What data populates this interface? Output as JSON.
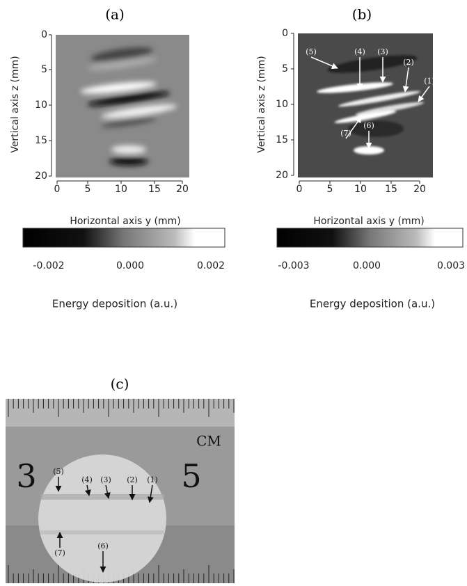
{
  "panels": [
    {
      "label": "(a)",
      "y_axis_label": "Vertical axis z (mm)",
      "x_axis_label": "Horizontal axis y (mm)",
      "yticks": [
        "0",
        "5",
        "10",
        "15",
        "20"
      ],
      "xticks": [
        "0",
        "5",
        "10",
        "15",
        "20"
      ],
      "colorbar_ticks": [
        "-0.002",
        "0.000",
        "0.002"
      ],
      "colorbar_label": "Energy deposition (a.u.)"
    },
    {
      "label": "(b)",
      "y_axis_label": "Vertical axis z (mm)",
      "x_axis_label": "Horizontal axis y (mm)",
      "yticks": [
        "0",
        "5",
        "10",
        "15",
        "20"
      ],
      "xticks": [
        "0",
        "5",
        "10",
        "15",
        "20"
      ],
      "colorbar_ticks": [
        "-0.003",
        "0.000",
        "0.003"
      ],
      "colorbar_label": "Energy deposition (a.u.)",
      "annotations": [
        "(5)",
        "(4)",
        "(3)",
        "(2)",
        "(1)",
        "(7)",
        "(6)"
      ]
    },
    {
      "label": "(c)",
      "ruler_text": [
        "CM",
        "3",
        "5"
      ],
      "annotations": [
        "(5)",
        "(4)",
        "(3)",
        "(2)",
        "(1)",
        "(7)",
        "(6)"
      ]
    }
  ]
}
